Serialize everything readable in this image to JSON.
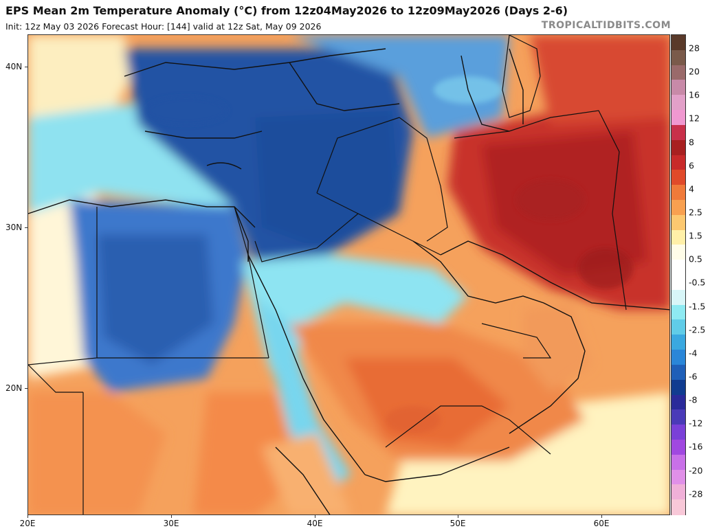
{
  "header": {
    "title": "EPS Mean 2m Temperature Anomaly (°C) from 12z04May2026 to 12z09May2026 (Days 2-6)",
    "subtitle": "Init: 12z May 03 2026   Forecast Hour: [144]   valid at 12z Sat, May 09 2026",
    "brand": "TROPICALTIDBITS.COM"
  },
  "map": {
    "lat_labels": [
      "40N",
      "30N",
      "20N"
    ],
    "lon_labels": [
      "20E",
      "30E",
      "40E",
      "50E",
      "60E"
    ],
    "regions": [
      {
        "name": "cold-anomaly-turkey-levant",
        "color": "#2a5ca8"
      },
      {
        "name": "cold-anomaly-egypt",
        "color": "#3a70c4"
      },
      {
        "name": "cool-anomaly-red-sea",
        "color": "#7fd8ef"
      },
      {
        "name": "warm-anomaly-arabia",
        "color": "#f08a4a"
      },
      {
        "name": "hot-anomaly-iran",
        "color": "#c8302c"
      },
      {
        "name": "mild-anomaly-arabian-sea",
        "color": "#fff6c2"
      }
    ]
  },
  "colorbar": {
    "labels": [
      "28",
      "20",
      "16",
      "12",
      "8",
      "6",
      "4",
      "2.5",
      "1.5",
      "0.5",
      "-0.5",
      "-1.5",
      "-2.5",
      "-4",
      "-6",
      "-8",
      "-12",
      "-16",
      "-20",
      "-28"
    ],
    "colors": [
      "#5a3a2a",
      "#7a5a4a",
      "#9a6a6a",
      "#c88aa8",
      "#e2a0c8",
      "#f098d0",
      "#c8304a",
      "#a82020",
      "#c82a2a",
      "#e04a2a",
      "#f07a3a",
      "#f8a050",
      "#fcc870",
      "#fff0a8",
      "#fffde8",
      "#ffffff",
      "#ffffff",
      "#d8f6f8",
      "#8eeaf2",
      "#60cce8",
      "#3aa8e0",
      "#2a86d8",
      "#1f5fb8",
      "#103c90",
      "#2a2a9a",
      "#4a3ab8",
      "#7a40d8",
      "#a048e0",
      "#c870e8",
      "#e090e8",
      "#f0b0d8",
      "#f8c8d8"
    ]
  }
}
